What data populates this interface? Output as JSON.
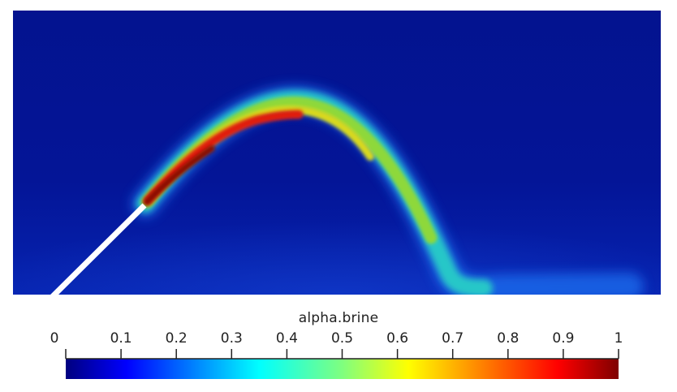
{
  "figure": {
    "field_name": "alpha.brine",
    "colormap": {
      "name": "jet",
      "range": [
        0,
        1
      ],
      "stops": [
        "#00007f",
        "#0000ff",
        "#00ffff",
        "#ffff00",
        "#ff0000",
        "#7f0000"
      ]
    },
    "background_color": "#03138f",
    "nozzle_color": "#ffffff"
  },
  "colorbar": {
    "title": "alpha.brine",
    "ticks": [
      {
        "value": 0,
        "label": "0"
      },
      {
        "value": 0.1,
        "label": "0.1"
      },
      {
        "value": 0.2,
        "label": "0.2"
      },
      {
        "value": 0.3,
        "label": "0.3"
      },
      {
        "value": 0.4,
        "label": "0.4"
      },
      {
        "value": 0.5,
        "label": "0.5"
      },
      {
        "value": 0.6,
        "label": "0.6"
      },
      {
        "value": 0.7,
        "label": "0.7"
      },
      {
        "value": 0.8,
        "label": "0.8"
      },
      {
        "value": 0.9,
        "label": "0.9"
      },
      {
        "value": 1,
        "label": "1"
      }
    ]
  }
}
